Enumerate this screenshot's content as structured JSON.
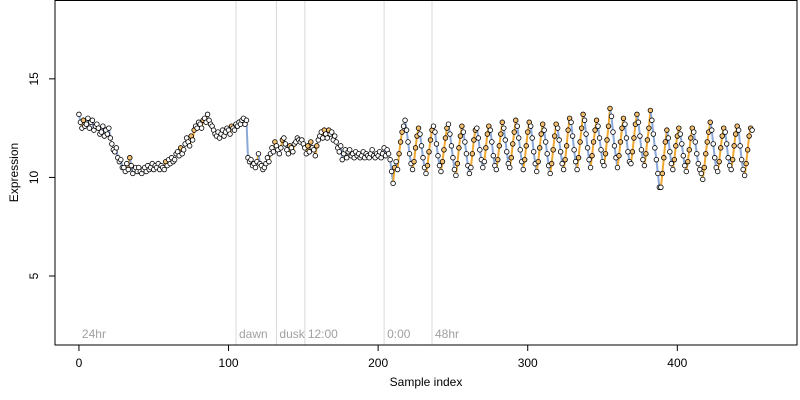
{
  "chart_data": {
    "type": "scatter",
    "title": "",
    "xlabel": "Sample index",
    "ylabel": "Expression",
    "xlim": [
      -16,
      480
    ],
    "ylim": [
      1.5,
      19
    ],
    "x_ticks": [
      0,
      100,
      200,
      300,
      400
    ],
    "y_ticks": [
      5,
      10,
      15
    ],
    "grid": false,
    "colors": {
      "line": "#b0b0b0",
      "segment_low": "#8aa8d8",
      "segment_high": "#f0a830",
      "point_edge": "#000000",
      "point_fill": "#ffffff",
      "point_fill_high": "#f5c070",
      "vline": "#d9d9d9",
      "annotation": "#a0a0a0"
    },
    "annotations": [
      {
        "label": "24hr",
        "x": 0
      },
      {
        "label": "dawn",
        "x": 105
      },
      {
        "label": "dusk",
        "x": 132
      },
      {
        "label": "12:00",
        "x": 151
      },
      {
        "label": "0:00",
        "x": 204
      },
      {
        "label": "48hr",
        "x": 236
      }
    ],
    "vlines": [
      105,
      132,
      151,
      204,
      236
    ],
    "values": [
      13.2,
      12.8,
      12.5,
      12.9,
      12.6,
      12.7,
      13.0,
      12.5,
      12.8,
      12.9,
      12.4,
      12.6,
      12.7,
      12.5,
      12.2,
      12.3,
      12.6,
      12.1,
      12.4,
      12.2,
      12.5,
      12.0,
      11.7,
      11.4,
      11.3,
      11.5,
      11.0,
      10.8,
      10.9,
      10.5,
      10.5,
      10.3,
      10.7,
      10.4,
      11.0,
      10.6,
      10.2,
      10.4,
      10.5,
      10.3,
      10.5,
      10.3,
      10.2,
      10.4,
      10.5,
      10.3,
      10.6,
      10.4,
      10.5,
      10.7,
      10.4,
      10.6,
      10.5,
      10.7,
      10.4,
      10.6,
      10.5,
      10.4,
      10.8,
      10.6,
      10.9,
      10.7,
      11.0,
      10.8,
      10.9,
      11.2,
      11.3,
      11.1,
      11.5,
      11.2,
      11.4,
      11.7,
      12.0,
      11.8,
      11.6,
      12.1,
      11.9,
      12.4,
      12.6,
      12.5,
      12.8,
      12.7,
      12.5,
      12.9,
      13.0,
      12.8,
      13.2,
      12.9,
      12.7,
      12.6,
      12.4,
      12.2,
      12.1,
      12.3,
      12.0,
      12.2,
      12.4,
      12.1,
      12.3,
      12.5,
      12.4,
      12.2,
      12.6,
      12.5,
      12.4,
      12.7,
      12.6,
      12.8,
      12.7,
      12.9,
      13.0,
      12.7,
      12.9,
      11.0,
      10.8,
      10.9,
      10.6,
      10.7,
      10.5,
      10.8,
      11.2,
      10.7,
      10.6,
      10.4,
      10.5,
      10.7,
      11.0,
      10.8,
      11.2,
      11.5,
      11.3,
      11.8,
      11.6,
      11.4,
      11.2,
      11.5,
      11.9,
      12.0,
      11.7,
      11.4,
      11.2,
      11.6,
      11.5,
      11.3,
      11.7,
      11.8,
      12.0,
      11.9,
      11.8,
      11.9,
      11.7,
      11.5,
      11.2,
      11.6,
      11.3,
      11.8,
      11.5,
      11.4,
      11.1,
      11.6,
      11.9,
      12.1,
      12.3,
      12.0,
      12.4,
      12.2,
      12.0,
      12.4,
      12.2,
      12.3,
      11.9,
      12.1,
      11.8,
      11.5,
      11.3,
      11.6,
      10.9,
      11.2,
      11.4,
      11.0,
      11.3,
      11.4,
      11.1,
      11.2,
      11.0,
      11.3,
      11.1,
      11.2,
      11.0,
      11.1,
      11.3,
      11.0,
      11.2,
      11.1,
      11.0,
      11.2,
      11.4,
      11.1,
      11.0,
      11.2,
      11.1,
      11.3,
      11.0,
      11.2,
      11.5,
      11.1,
      11.4,
      11.2,
      10.9,
      10.3,
      9.7,
      10.5,
      10.8,
      10.4,
      11.2,
      11.8,
      12.3,
      12.6,
      12.9,
      12.4,
      11.8,
      11.2,
      10.7,
      10.4,
      10.8,
      11.5,
      12.1,
      12.5,
      12.2,
      11.6,
      11.0,
      10.5,
      10.2,
      10.6,
      11.3,
      11.9,
      12.4,
      12.6,
      12.3,
      11.7,
      11.1,
      10.6,
      10.3,
      10.8,
      11.4,
      12.0,
      12.5,
      12.7,
      12.2,
      11.6,
      11.0,
      10.4,
      10.1,
      10.7,
      11.5,
      12.1,
      12.6,
      12.3,
      11.8,
      11.2,
      10.6,
      10.2,
      10.5,
      11.2,
      11.9,
      12.4,
      12.5,
      12.0,
      11.4,
      10.9,
      10.5,
      10.8,
      11.5,
      12.2,
      12.6,
      12.4,
      11.8,
      11.1,
      10.6,
      10.4,
      10.9,
      11.6,
      12.2,
      12.8,
      12.5,
      11.9,
      11.3,
      10.7,
      10.5,
      11.0,
      11.7,
      12.3,
      12.9,
      12.6,
      12.0,
      11.4,
      10.8,
      10.4,
      10.9,
      11.6,
      12.3,
      12.8,
      12.6,
      12.0,
      11.3,
      10.7,
      10.3,
      10.8,
      11.5,
      12.2,
      12.7,
      12.4,
      11.8,
      11.2,
      10.6,
      10.2,
      10.7,
      11.4,
      12.1,
      12.7,
      12.5,
      11.9,
      11.3,
      10.7,
      10.4,
      10.9,
      11.6,
      12.4,
      13.0,
      12.8,
      12.1,
      11.4,
      10.8,
      10.4,
      11.0,
      11.8,
      12.5,
      13.2,
      12.9,
      12.2,
      11.5,
      10.9,
      10.5,
      11.1,
      11.8,
      12.4,
      12.9,
      12.6,
      12.0,
      11.4,
      10.8,
      10.6,
      11.2,
      11.9,
      12.6,
      13.5,
      13.1,
      12.3,
      11.6,
      11.0,
      10.5,
      11.1,
      11.8,
      12.5,
      13.0,
      12.7,
      12.0,
      11.3,
      10.8,
      10.7,
      11.3,
      12.0,
      12.7,
      13.2,
      12.8,
      12.1,
      11.4,
      10.9,
      10.6,
      11.2,
      11.9,
      12.5,
      13.4,
      12.9,
      12.2,
      11.5,
      10.9,
      10.2,
      9.5,
      9.5,
      10.2,
      11.0,
      11.8,
      12.4,
      12.0,
      11.3,
      10.7,
      10.4,
      10.9,
      11.6,
      12.1,
      12.5,
      12.2,
      11.7,
      11.1,
      10.6,
      10.3,
      10.8,
      11.4,
      12.0,
      12.5,
      12.3,
      11.8,
      11.2,
      10.7,
      10.4,
      10.2,
      9.9,
      10.5,
      11.2,
      11.8,
      12.3,
      12.8,
      12.4,
      11.7,
      11.0,
      10.5,
      10.3,
      10.8,
      11.5,
      12.1,
      12.5,
      12.3,
      11.7,
      11.0,
      10.6,
      10.4,
      10.9,
      11.6,
      12.2,
      12.6,
      12.4,
      11.6,
      10.9,
      10.4,
      10.1,
      10.7,
      11.4,
      12.1,
      12.5,
      12.4
    ]
  }
}
